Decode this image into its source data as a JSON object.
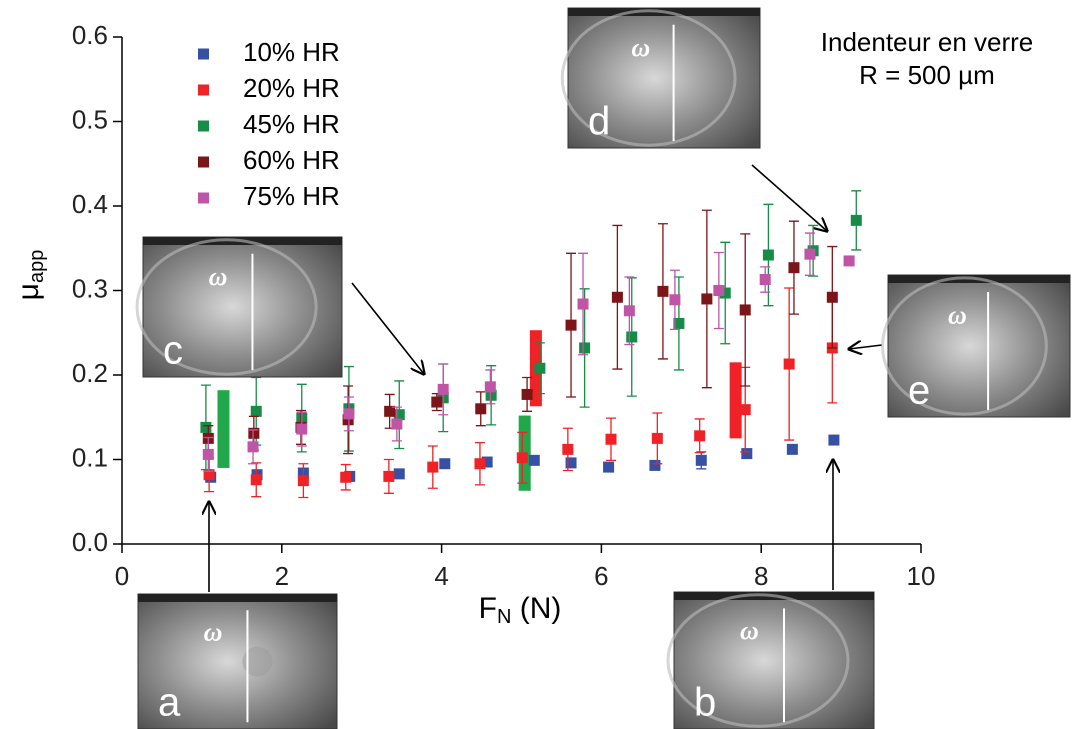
{
  "chart_data": {
    "type": "scatter",
    "ylabel": {
      "main": "μ",
      "sub": "app"
    },
    "xlabel": {
      "main": "F",
      "sub": "N",
      "unit": " (N)"
    },
    "annotation": [
      "Indenteur en verre",
      "R = 500 µm"
    ],
    "xlim": [
      0,
      10
    ],
    "xticks": [
      0,
      2,
      4,
      6,
      8,
      10
    ],
    "ylim": [
      0,
      0.6
    ],
    "yticks": [
      {
        "value": 0,
        "label": "0.0"
      },
      0.1,
      0.2,
      0.3,
      0.4,
      0.5,
      0.6
    ],
    "series": [
      {
        "name": "10% HR",
        "color": "#3651a3",
        "x": [
          1.11,
          1.69,
          2.27,
          2.85,
          3.47,
          4.04,
          4.57,
          5.16,
          5.62,
          6.09,
          6.67,
          7.25,
          7.82,
          8.39,
          8.91
        ],
        "values": [
          0.079,
          0.082,
          0.084,
          0.08,
          0.083,
          0.095,
          0.097,
          0.099,
          0.096,
          0.091,
          0.093,
          0.099,
          0.107,
          0.112,
          0.123
        ],
        "errors": [
          0.005,
          0.005,
          0.005,
          0.004,
          0.004,
          0.003,
          0.003,
          0.003,
          0.003,
          0.003,
          0.003,
          0.01,
          0.003,
          0.003,
          0.003
        ]
      },
      {
        "name": "20% HR",
        "color": "#ee2227",
        "x": [
          1.09,
          1.68,
          2.27,
          2.8,
          3.34,
          3.89,
          4.48,
          5.01,
          5.58,
          6.12,
          6.7,
          7.23,
          7.8,
          8.35,
          8.89
        ],
        "values": [
          0.082,
          0.076,
          0.075,
          0.079,
          0.08,
          0.091,
          0.095,
          0.102,
          0.112,
          0.124,
          0.125,
          0.128,
          0.159,
          0.213,
          0.232
        ],
        "errors": [
          0.02,
          0.02,
          0.02,
          0.015,
          0.02,
          0.025,
          0.025,
          0.03,
          0.025,
          0.025,
          0.03,
          0.02,
          0.05,
          0.09,
          0.065
        ]
      },
      {
        "name": "45% HR",
        "color": "#168c47",
        "x": [
          1.05,
          1.68,
          2.25,
          2.84,
          3.47,
          4.02,
          4.62,
          5.23,
          5.79,
          6.38,
          6.97,
          7.55,
          8.09,
          8.65,
          9.19
        ],
        "values": [
          0.138,
          0.157,
          0.149,
          0.16,
          0.153,
          0.173,
          0.176,
          0.208,
          0.232,
          0.245,
          0.261,
          0.297,
          0.342,
          0.347,
          0.383
        ],
        "errors": [
          0.05,
          0.04,
          0.04,
          0.05,
          0.04,
          0.04,
          0.035,
          0.03,
          0.07,
          0.07,
          0.055,
          0.06,
          0.06,
          0.03,
          0.035
        ]
      },
      {
        "name": "60% HR",
        "color": "#7b1518",
        "x": [
          1.08,
          1.65,
          2.24,
          2.83,
          3.35,
          3.94,
          4.49,
          5.07,
          5.62,
          6.2,
          6.77,
          7.32,
          7.8,
          8.41,
          8.89
        ],
        "values": [
          0.125,
          0.131,
          0.138,
          0.147,
          0.157,
          0.168,
          0.16,
          0.177,
          0.259,
          0.292,
          0.299,
          0.29,
          0.277,
          0.327,
          0.292
        ],
        "errors": [
          0.015,
          0.02,
          0.02,
          0.04,
          0.02,
          0.01,
          0.02,
          0.02,
          0.085,
          0.085,
          0.08,
          0.105,
          0.09,
          0.055,
          0.06
        ]
      },
      {
        "name": "75% HR",
        "color": "#c055a8",
        "x": [
          1.08,
          1.64,
          2.25,
          2.84,
          3.44,
          4.02,
          4.61,
          5.77,
          6.35,
          6.92,
          7.47,
          8.05,
          8.61,
          9.1
        ],
        "values": [
          0.106,
          0.115,
          0.136,
          0.154,
          0.142,
          0.183,
          0.186,
          0.284,
          0.276,
          0.289,
          0.3,
          0.313,
          0.343,
          0.335
        ],
        "errors": [
          0.02,
          0.02,
          0.02,
          0.02,
          0.02,
          0.03,
          0.02,
          0.06,
          0.04,
          0.035,
          0.045,
          0.015,
          0.025,
          0.005
        ]
      }
    ],
    "ranges": [
      {
        "x": 1.27,
        "low": 0.09,
        "high": 0.182,
        "color": "#20a84a"
      },
      {
        "x": 5.04,
        "low": 0.063,
        "high": 0.152,
        "color": "#20a84a"
      },
      {
        "x": 5.18,
        "low": 0.163,
        "high": 0.253,
        "color": "#ee2227"
      },
      {
        "x": 7.68,
        "low": 0.125,
        "high": 0.215,
        "color": "#ee2227"
      }
    ],
    "insets": [
      {
        "label": "a",
        "symbol": "ω"
      },
      {
        "label": "b",
        "symbol": "ω"
      },
      {
        "label": "c",
        "symbol": "ω"
      },
      {
        "label": "d",
        "symbol": "ω"
      },
      {
        "label": "e",
        "symbol": "ω"
      }
    ]
  }
}
